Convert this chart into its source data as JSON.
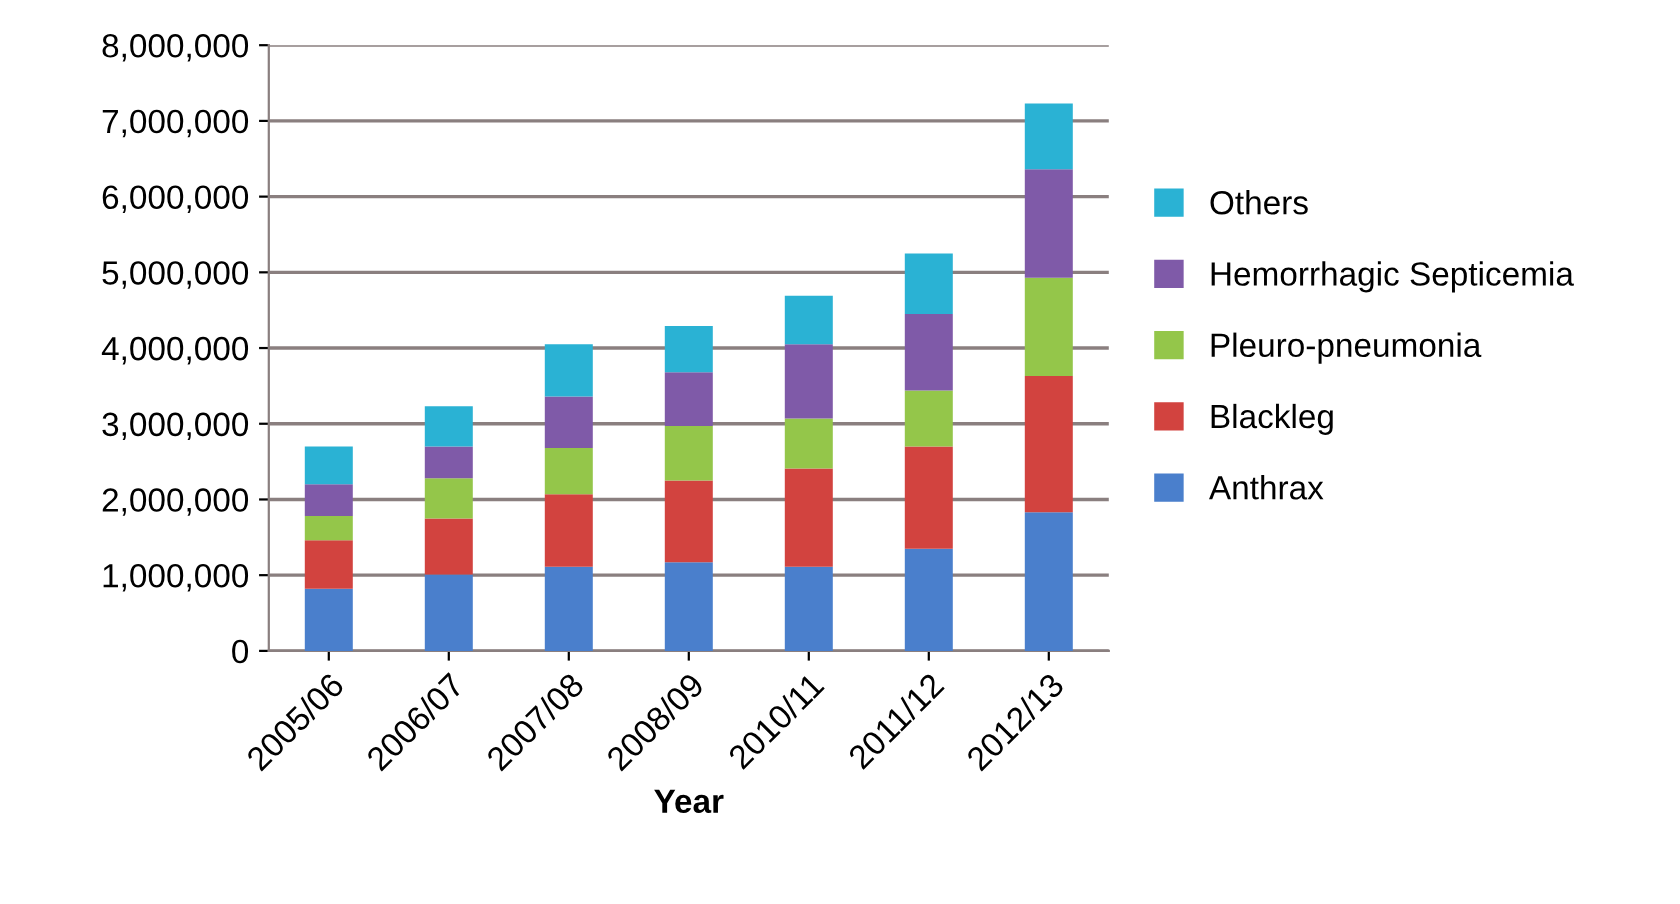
{
  "chart_data": {
    "type": "bar",
    "stacked": true,
    "xlabel": "Year",
    "categories": [
      "2005/06",
      "2006/07",
      "2007/08",
      "2008/09",
      "2010/11",
      "2011/12",
      "2012/13"
    ],
    "series": [
      {
        "name": "Anthrax",
        "color": "#4a7fcc",
        "values": [
          820000,
          1010000,
          1110000,
          1170000,
          1110000,
          1350000,
          1830000
        ]
      },
      {
        "name": "Blackleg",
        "color": "#d2433f",
        "values": [
          640000,
          740000,
          960000,
          1080000,
          1300000,
          1350000,
          1800000
        ]
      },
      {
        "name": "Pleuro-pneumonia",
        "color": "#94c64a",
        "values": [
          320000,
          530000,
          610000,
          720000,
          660000,
          740000,
          1300000
        ]
      },
      {
        "name": "Hemorrhagic Septicemia",
        "color": "#7f5aa8",
        "values": [
          420000,
          420000,
          680000,
          710000,
          980000,
          1010000,
          1430000
        ]
      },
      {
        "name": "Others",
        "color": "#2ab2d4",
        "values": [
          500000,
          530000,
          690000,
          610000,
          640000,
          800000,
          870000
        ]
      }
    ],
    "ylim": [
      0,
      8000000
    ],
    "yticks": [
      {
        "value": 0,
        "label": "0"
      },
      {
        "value": 1000000,
        "label": "1,000,000"
      },
      {
        "value": 2000000,
        "label": "2,000,000"
      },
      {
        "value": 3000000,
        "label": "3,000,000"
      },
      {
        "value": 4000000,
        "label": "4,000,000"
      },
      {
        "value": 5000000,
        "label": "5,000,000"
      },
      {
        "value": 6000000,
        "label": "6,000,000"
      },
      {
        "value": 7000000,
        "label": "7,000,000"
      },
      {
        "value": 8000000,
        "label": "8,000,000"
      }
    ],
    "grid": "y",
    "legend": "right"
  }
}
